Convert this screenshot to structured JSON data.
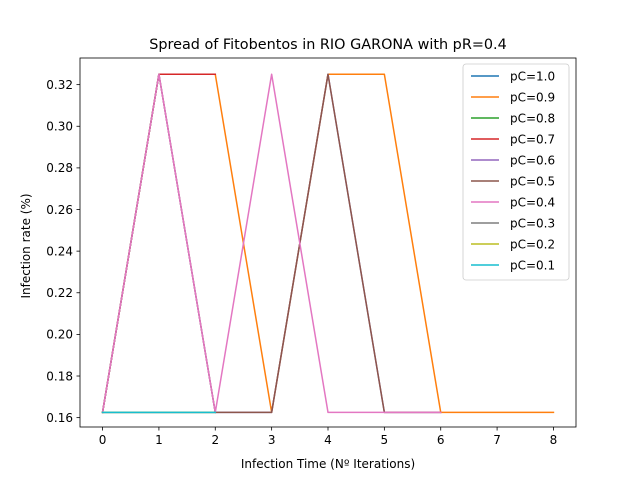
{
  "chart_data": {
    "type": "line",
    "title": "Spread of Fitobentos in RIO GARONA with pR=0.4",
    "xlabel": "Infection Time (Nº Iterations)",
    "ylabel": "Infection rate (%)",
    "xlim": [
      -0.4,
      8.4
    ],
    "ylim": [
      0.1555,
      0.3328
    ],
    "xticks": [
      0,
      1,
      2,
      3,
      4,
      5,
      6,
      7,
      8
    ],
    "yticks": [
      0.16,
      0.18,
      0.2,
      0.22,
      0.24,
      0.26,
      0.28,
      0.3,
      0.32
    ],
    "ytick_labels": [
      "0.16",
      "0.18",
      "0.20",
      "0.22",
      "0.24",
      "0.26",
      "0.28",
      "0.30",
      "0.32"
    ],
    "legend_position": "top-right",
    "grid": false,
    "series": [
      {
        "name": "pC=1.0",
        "color": "#1f77b4",
        "x": [
          0,
          1,
          2
        ],
        "y": [
          0.1625,
          0.1625,
          0.1625
        ]
      },
      {
        "name": "pC=0.9",
        "color": "#ff7f0e",
        "x": [
          0,
          1,
          2,
          3,
          4,
          5,
          6,
          7,
          8
        ],
        "y": [
          0.1625,
          0.325,
          0.325,
          0.1625,
          0.325,
          0.325,
          0.1625,
          0.1625,
          0.1625
        ]
      },
      {
        "name": "pC=0.8",
        "color": "#2ca02c",
        "x": [
          0,
          1,
          2
        ],
        "y": [
          0.1625,
          0.325,
          0.325
        ]
      },
      {
        "name": "pC=0.7",
        "color": "#d62728",
        "x": [
          0,
          1,
          2
        ],
        "y": [
          0.1625,
          0.325,
          0.325
        ]
      },
      {
        "name": "pC=0.6",
        "color": "#9467bd",
        "x": [
          0,
          1,
          2,
          3,
          4,
          5,
          6
        ],
        "y": [
          0.1625,
          0.325,
          0.1625,
          0.1625,
          0.325,
          0.1625,
          0.1625
        ]
      },
      {
        "name": "pC=0.5",
        "color": "#8c564b",
        "x": [
          0,
          1,
          2,
          3,
          4,
          5,
          6
        ],
        "y": [
          0.1625,
          0.325,
          0.1625,
          0.1625,
          0.325,
          0.1625,
          0.1625
        ]
      },
      {
        "name": "pC=0.4",
        "color": "#e377c2",
        "x": [
          0,
          1,
          2,
          3,
          4,
          5,
          6
        ],
        "y": [
          0.1625,
          0.325,
          0.1625,
          0.325,
          0.1625,
          0.1625,
          0.1625
        ]
      },
      {
        "name": "pC=0.3",
        "color": "#7f7f7f",
        "x": [
          0,
          1,
          2
        ],
        "y": [
          0.1625,
          0.1625,
          0.1625
        ]
      },
      {
        "name": "pC=0.2",
        "color": "#bcbd22",
        "x": [
          0,
          1,
          2
        ],
        "y": [
          0.1625,
          0.1625,
          0.1625
        ]
      },
      {
        "name": "pC=0.1",
        "color": "#17becf",
        "x": [
          0,
          1,
          2
        ],
        "y": [
          0.1625,
          0.1625,
          0.1625
        ]
      }
    ]
  }
}
